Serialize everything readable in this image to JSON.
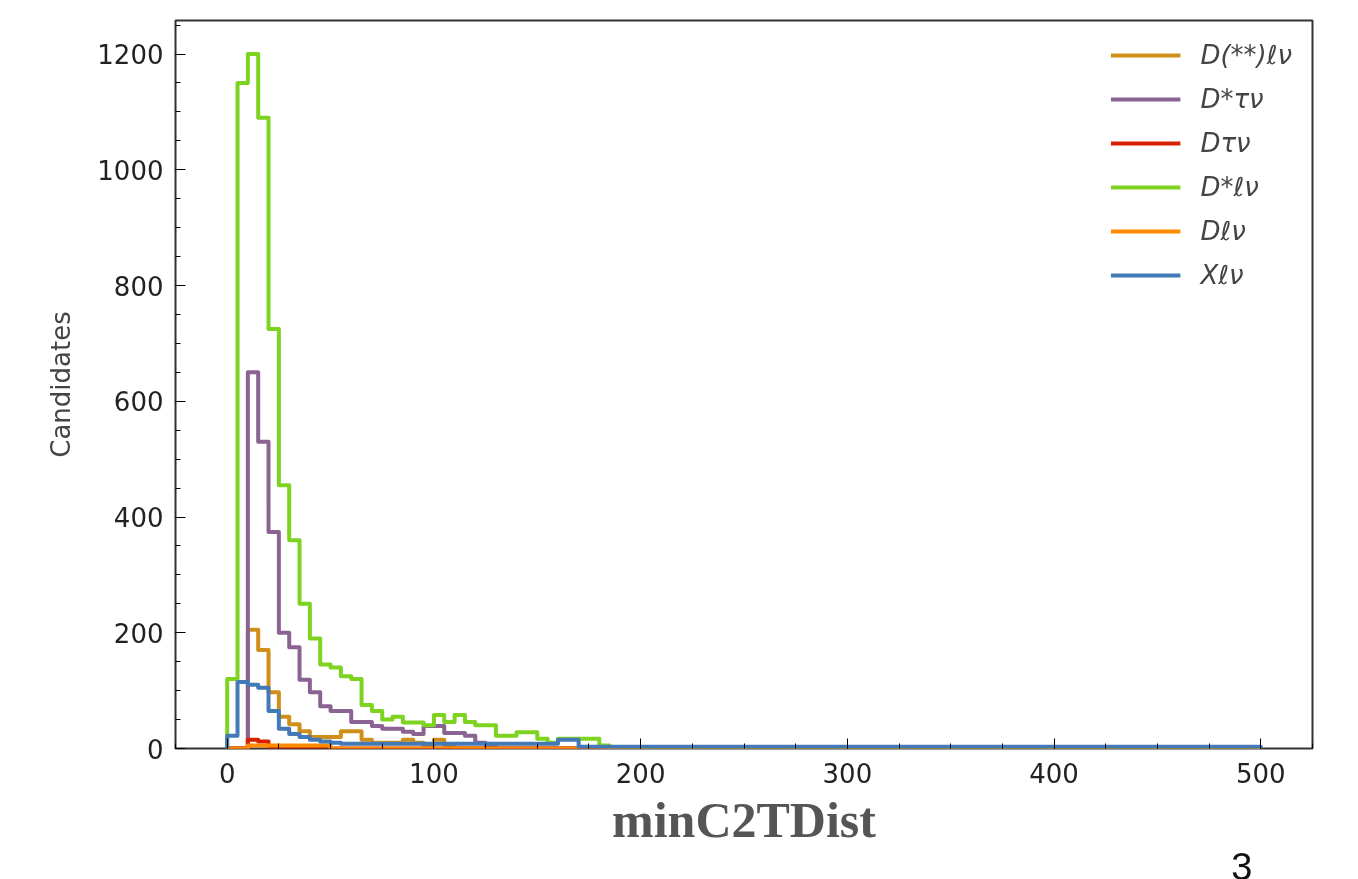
{
  "chart_data": {
    "type": "histogram",
    "xlabel": "minC2TDist",
    "ylabel": "Candidates",
    "annotations": [
      "3"
    ],
    "bins": [
      0,
      5,
      10,
      15,
      20,
      25,
      30,
      35,
      40,
      45,
      50,
      55,
      60,
      65,
      70,
      75,
      80,
      85,
      90,
      95,
      100,
      105,
      110,
      115,
      120,
      125,
      130,
      135,
      140,
      145,
      150,
      155,
      160,
      165,
      170,
      175,
      180,
      185,
      190,
      195,
      200,
      205,
      210,
      215,
      220,
      225,
      230,
      235,
      240,
      245,
      250,
      255,
      260,
      265,
      270,
      275,
      280,
      285,
      290,
      295,
      300,
      305,
      310,
      315,
      320,
      325,
      330,
      335,
      340,
      345,
      350,
      355,
      360,
      365,
      370,
      375,
      380,
      385,
      390,
      395,
      400,
      405,
      410,
      415,
      420,
      425,
      430,
      435,
      440,
      445,
      450,
      455,
      460,
      465,
      470,
      475,
      480,
      485,
      490,
      495,
      500
    ],
    "series": [
      {
        "name": "D(**)ℓν",
        "color": "#d08f1a",
        "values": [
          0,
          0,
          205,
          170,
          97,
          55,
          42,
          30,
          20,
          20,
          20,
          30,
          30,
          15,
          10,
          10,
          10,
          15,
          10,
          5,
          15,
          5,
          0,
          0,
          0,
          0,
          0,
          0,
          0,
          0,
          0,
          0,
          0,
          0,
          0,
          0,
          0,
          0,
          0,
          0,
          0,
          0,
          0,
          0,
          0,
          0,
          0,
          0,
          0,
          0,
          0,
          0,
          0,
          0,
          0,
          0,
          0,
          0,
          0,
          0,
          0,
          0,
          0,
          0,
          0,
          0,
          0,
          0,
          0,
          0,
          0,
          0,
          0,
          0,
          0,
          0,
          0,
          0,
          0,
          0,
          0,
          0,
          0,
          0,
          0,
          0,
          0,
          0,
          0,
          0,
          0,
          0,
          0,
          0,
          0,
          0,
          0,
          0,
          0,
          0
        ]
      },
      {
        "name": "D*τν",
        "color": "#8b6393",
        "values": [
          0,
          0,
          650,
          530,
          374,
          200,
          175,
          119,
          97,
          73,
          65,
          65,
          46,
          46,
          39,
          34,
          34,
          29,
          25,
          39,
          39,
          27,
          27,
          22,
          10,
          5,
          0,
          0,
          0,
          0,
          0,
          0,
          0,
          0,
          0,
          0,
          0,
          0,
          0,
          0,
          0,
          0,
          0,
          0,
          0,
          0,
          0,
          0,
          0,
          0,
          0,
          0,
          0,
          0,
          0,
          0,
          0,
          0,
          0,
          0,
          0,
          0,
          0,
          0,
          0,
          0,
          0,
          0,
          0,
          0,
          0,
          0,
          0,
          0,
          0,
          0,
          0,
          0,
          0,
          0,
          0,
          0,
          0,
          0,
          0,
          0,
          0,
          0,
          0,
          0,
          0,
          0,
          0,
          0,
          0,
          0,
          0,
          0,
          0,
          0
        ]
      },
      {
        "name": "Dτν",
        "color": "#d62000",
        "values": [
          0,
          0,
          15,
          12,
          0,
          0,
          0,
          0,
          0,
          0,
          0,
          0,
          0,
          0,
          0,
          0,
          0,
          0,
          0,
          0,
          0,
          0,
          0,
          0,
          0,
          0,
          0,
          0,
          0,
          0,
          0,
          0,
          0,
          0,
          0,
          0,
          0,
          0,
          0,
          0,
          0,
          0,
          0,
          0,
          0,
          0,
          0,
          0,
          0,
          0,
          0,
          0,
          0,
          0,
          0,
          0,
          0,
          0,
          0,
          0,
          0,
          0,
          0,
          0,
          0,
          0,
          0,
          0,
          0,
          0,
          0,
          0,
          0,
          0,
          0,
          0,
          0,
          0,
          0,
          0,
          0,
          0,
          0,
          0,
          0,
          0,
          0,
          0,
          0,
          0,
          0,
          0,
          0,
          0,
          0,
          0,
          0,
          0,
          0,
          0
        ]
      },
      {
        "name": "D*ℓν",
        "color": "#7ed321",
        "values": [
          120,
          1150,
          1200,
          1090,
          725,
          455,
          360,
          250,
          190,
          145,
          140,
          125,
          120,
          75,
          65,
          50,
          55,
          45,
          45,
          40,
          58,
          46,
          58,
          46,
          40,
          40,
          22,
          22,
          28,
          28,
          17,
          10,
          17,
          17,
          17,
          17,
          5,
          0,
          0,
          0,
          0,
          0,
          0,
          0,
          0,
          0,
          0,
          0,
          0,
          0,
          0,
          0,
          0,
          0,
          0,
          0,
          0,
          0,
          0,
          0,
          0,
          0,
          0,
          0,
          0,
          0,
          0,
          0,
          0,
          0,
          0,
          0,
          0,
          0,
          0,
          0,
          0,
          0,
          0,
          0,
          0,
          0,
          0,
          0,
          0,
          0,
          0,
          0,
          0,
          0,
          0,
          0,
          0,
          0,
          0,
          0,
          0,
          0,
          0,
          0
        ]
      },
      {
        "name": "Dℓν",
        "color": "#ff8c00",
        "values": [
          0,
          0,
          5,
          5,
          5,
          5,
          5,
          5,
          5,
          5,
          0,
          0,
          0,
          0,
          0,
          0,
          0,
          0,
          0,
          0,
          0,
          0,
          0,
          0,
          0,
          0,
          0,
          0,
          0,
          0,
          0,
          0,
          0,
          0,
          0,
          0,
          0,
          0,
          0,
          0,
          0,
          0,
          0,
          0,
          0,
          0,
          0,
          0,
          0,
          0,
          0,
          0,
          0,
          0,
          0,
          0,
          0,
          0,
          0,
          0,
          0,
          0,
          0,
          0,
          0,
          0,
          0,
          0,
          0,
          0,
          0,
          0,
          0,
          0,
          0,
          0,
          0,
          0,
          0,
          0,
          0,
          0,
          0,
          0,
          0,
          0,
          0,
          0,
          0,
          0,
          0,
          0,
          0,
          0,
          0,
          0,
          0,
          0,
          0,
          0
        ]
      },
      {
        "name": "Xℓν",
        "color": "#4379b7",
        "values": [
          22,
          115,
          110,
          105,
          65,
          34,
          25,
          20,
          15,
          12,
          10,
          8,
          8,
          8,
          8,
          8,
          8,
          8,
          8,
          8,
          8,
          8,
          8,
          8,
          8,
          8,
          8,
          8,
          8,
          8,
          8,
          8,
          15,
          15,
          3,
          3,
          3,
          3,
          3,
          3,
          3,
          3,
          3,
          3,
          3,
          3,
          3,
          3,
          3,
          3,
          3,
          3,
          3,
          3,
          3,
          3,
          3,
          3,
          3,
          3,
          3,
          3,
          3,
          3,
          3,
          3,
          3,
          3,
          3,
          3,
          3,
          3,
          3,
          3,
          3,
          3,
          3,
          3,
          3,
          3,
          3,
          3,
          3,
          3,
          3,
          3,
          3,
          3,
          3,
          3,
          3,
          3,
          3,
          3,
          3,
          3,
          3,
          3,
          3,
          3
        ]
      }
    ],
    "xlim": [
      -25,
      525
    ],
    "xticks": [
      0,
      100,
      200,
      300,
      400,
      500
    ],
    "ylim": [
      0,
      1258
    ],
    "yticks": [
      0,
      200,
      400,
      600,
      800,
      1000,
      1200
    ],
    "grid": false,
    "legend": "top right"
  }
}
